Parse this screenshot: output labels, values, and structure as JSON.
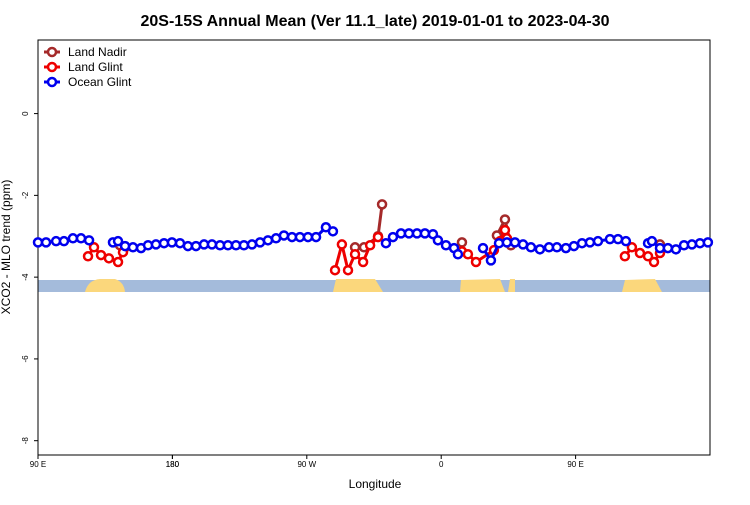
{
  "chart_data": {
    "type": "line",
    "title": "20S-15S Annual Mean (Ver 11.1_late)   2019-01-01 to 2023-04-30",
    "x_label": "Longitude",
    "y_label": "XCO2 - MLO trend (ppm)",
    "xlim": [
      90,
      540
    ],
    "ylim": [
      -8.35,
      1.8
    ],
    "xticks": [
      {
        "value": 90,
        "label": "90 E"
      },
      180,
      {
        "value": 270,
        "label": "90 W"
      },
      {
        "value": 360,
        "label": "0"
      },
      {
        "value": 450,
        "label": "90 E"
      },
      180.0001
    ],
    "yticks": [
      0,
      -2,
      -4,
      -6,
      -8
    ],
    "legend": "top-left",
    "series": [
      {
        "name": "Land Nadir",
        "color": "#a52a2a",
        "x": [
          144.9,
          148.3,
          null,
          302.3,
          308.3,
          317.7,
          320.4,
          null,
          373.9,
          null,
          397.3,
          402.7,
          406.7,
          null,
          506.5
        ],
        "values": [
          -3.22,
          -3.27,
          null,
          -3.27,
          -3.27,
          -3.0,
          -2.22,
          null,
          -3.15,
          null,
          -2.98,
          -2.59,
          -3.22,
          null,
          -3.2
        ]
      },
      {
        "name": "Land Glint",
        "color": "#ee0000",
        "x": [
          123.5,
          127.5,
          132.2,
          137.5,
          143.6,
          146.9,
          null,
          288.9,
          293.5,
          297.6,
          302.3,
          307.7,
          312.4,
          317.7,
          null,
          373.9,
          377.9,
          383.3,
          395.3,
          399.4,
          402.7,
          404.0,
          null,
          483.0,
          487.7,
          493.1,
          498.5,
          502.5,
          506.5
        ],
        "values": [
          -3.49,
          -3.27,
          -3.46,
          -3.54,
          -3.63,
          -3.39,
          null,
          -3.83,
          -3.2,
          -3.83,
          -3.44,
          -3.63,
          -3.22,
          -3.02,
          null,
          -3.37,
          -3.44,
          -3.63,
          -3.34,
          -3.12,
          -2.85,
          -3.05,
          null,
          -3.49,
          -3.27,
          -3.41,
          -3.49,
          -3.63,
          -3.41
        ]
      },
      {
        "name": "Ocean Glint",
        "color": "#0000ee",
        "x": [
          90,
          95.4,
          102.1,
          107.4,
          113.4,
          118.8,
          124.2,
          null,
          140.2,
          143.6,
          148.3,
          153.6,
          159.0,
          163.7,
          169.0,
          174.4,
          179.7,
          185.1,
          190.4,
          195.8,
          201.2,
          206.5,
          211.9,
          217.2,
          222.6,
          227.9,
          233.3,
          238.7,
          244.0,
          249.4,
          254.7,
          260.1,
          265.4,
          270.8,
          276.2,
          282.8,
          287.5,
          null,
          323.0,
          327.7,
          333.1,
          338.4,
          343.8,
          349.1,
          354.5,
          357.8,
          363.2,
          368.6,
          371.2,
          null,
          388.0,
          393.3,
          398.7,
          404.0,
          409.4,
          414.8,
          420.1,
          426.1,
          432.2,
          437.5,
          443.5,
          448.9,
          454.3,
          459.6,
          465.0,
          473.0,
          478.4,
          483.7,
          null,
          498.5,
          501.1,
          506.5,
          511.8,
          517.2,
          522.6,
          527.9,
          533.3,
          538.6
        ],
        "values": [
          -3.15,
          -3.15,
          -3.12,
          -3.12,
          -3.05,
          -3.05,
          -3.1,
          null,
          -3.15,
          -3.12,
          -3.24,
          -3.27,
          -3.29,
          -3.22,
          -3.2,
          -3.17,
          -3.15,
          -3.17,
          -3.24,
          -3.24,
          -3.2,
          -3.2,
          -3.22,
          -3.22,
          -3.22,
          -3.22,
          -3.2,
          -3.15,
          -3.1,
          -3.05,
          -2.98,
          -3.02,
          -3.02,
          -3.02,
          -3.02,
          -2.78,
          -2.88,
          null,
          -3.17,
          -3.02,
          -2.93,
          -2.93,
          -2.93,
          -2.93,
          -2.95,
          -3.1,
          -3.22,
          -3.29,
          -3.44,
          null,
          -3.29,
          -3.59,
          -3.17,
          -3.15,
          -3.15,
          -3.2,
          -3.27,
          -3.32,
          -3.27,
          -3.27,
          -3.29,
          -3.24,
          -3.17,
          -3.15,
          -3.12,
          -3.07,
          -3.07,
          -3.12,
          null,
          -3.17,
          -3.12,
          -3.29,
          -3.29,
          -3.32,
          -3.22,
          -3.2,
          -3.17,
          -3.15
        ]
      }
    ]
  }
}
